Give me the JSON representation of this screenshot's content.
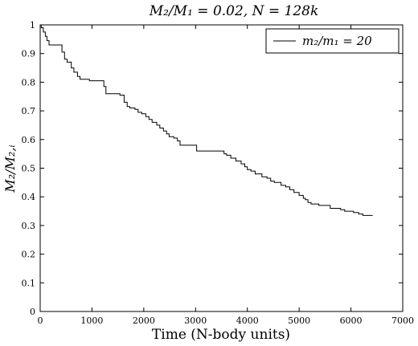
{
  "chart_data": {
    "type": "line",
    "title": "M₂/M₁ = 0.02, N = 128k",
    "xlabel": "Time (N-body units)",
    "ylabel": "M₂/M₂,ᵢ",
    "xlim": [
      0,
      7000
    ],
    "ylim": [
      0,
      1
    ],
    "xticks": [
      "0",
      "1000",
      "2000",
      "3000",
      "4000",
      "5000",
      "6000",
      "7000"
    ],
    "yticks": [
      "0",
      "0.1",
      "0.2",
      "0.3",
      "0.4",
      "0.5",
      "0.6",
      "0.7",
      "0.8",
      "0.9",
      "1"
    ],
    "grid": false,
    "legend_position": "top-right",
    "series": [
      {
        "name": "m₂/m₁ = 20",
        "color": "#000000",
        "step": true,
        "x": [
          0,
          20,
          60,
          100,
          130,
          170,
          230,
          420,
          470,
          520,
          600,
          650,
          720,
          770,
          830,
          880,
          950,
          1230,
          1270,
          1540,
          1620,
          1680,
          1730,
          1830,
          1890,
          1960,
          2040,
          2100,
          2160,
          2250,
          2310,
          2380,
          2440,
          2490,
          2580,
          2650,
          2700,
          2920,
          3020,
          3550,
          3600,
          3680,
          3780,
          3880,
          3950,
          4000,
          4070,
          4150,
          4280,
          4380,
          4450,
          4520,
          4650,
          4740,
          4820,
          4900,
          5000,
          5080,
          5120,
          5170,
          5230,
          5300,
          5380,
          5470,
          5600,
          5700,
          5800,
          5880,
          5950,
          6000,
          6050,
          6150,
          6230,
          6260,
          6290,
          6420
        ],
        "y": [
          1.0,
          0.99,
          0.975,
          0.96,
          0.945,
          0.93,
          0.93,
          0.905,
          0.88,
          0.87,
          0.85,
          0.835,
          0.82,
          0.81,
          0.81,
          0.81,
          0.805,
          0.785,
          0.76,
          0.755,
          0.73,
          0.715,
          0.71,
          0.705,
          0.695,
          0.69,
          0.68,
          0.67,
          0.66,
          0.65,
          0.64,
          0.63,
          0.62,
          0.61,
          0.605,
          0.595,
          0.58,
          0.58,
          0.56,
          0.55,
          0.545,
          0.535,
          0.525,
          0.515,
          0.505,
          0.495,
          0.49,
          0.48,
          0.47,
          0.465,
          0.455,
          0.45,
          0.44,
          0.435,
          0.425,
          0.415,
          0.405,
          0.395,
          0.39,
          0.38,
          0.375,
          0.375,
          0.37,
          0.37,
          0.36,
          0.36,
          0.355,
          0.35,
          0.35,
          0.35,
          0.345,
          0.34,
          0.335,
          0.335,
          0.335,
          0.335
        ]
      }
    ]
  }
}
